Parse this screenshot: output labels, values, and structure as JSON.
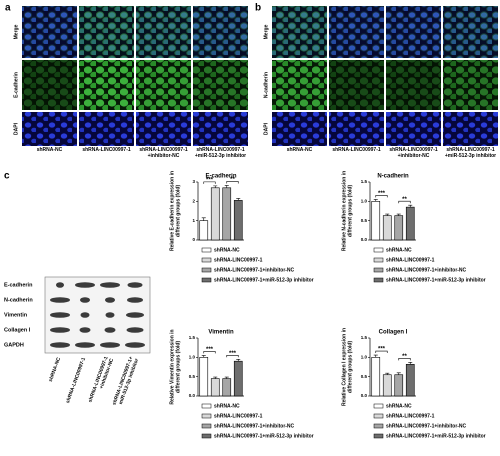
{
  "panels": {
    "a": {
      "label": "a",
      "rows": [
        "Merge",
        "E-cadherin",
        "DAPI"
      ],
      "columns": [
        "shRNA-NC",
        "shRNA-LINC00997-1",
        "shRNA-LINC00997-1\n+inhibitor-NC",
        "shRNA-LINC00997-1\n+miR-512-3p inhibitor"
      ]
    },
    "b": {
      "label": "b",
      "rows": [
        "Merge",
        "N-cadherin",
        "DAPI"
      ],
      "columns": [
        "shRNA-NC",
        "shRNA-LINC00997-1",
        "shRNA-LINC00997-1\n+inhibitor-NC",
        "shRNA-LINC00997-1\n+miR-512-3p inhibitor"
      ]
    },
    "c": {
      "label": "c",
      "blot": {
        "proteins": [
          "E-cadherin",
          "N-cadherin",
          "Vimentin",
          "Collagen I",
          "GAPDH"
        ],
        "lanes": [
          "shRNA-NC",
          "shRNA-LINC00997-1",
          "shRNA-LINC00997-1\n+inhibitor-NC",
          "shRNA-LINC00997-1+\nmiR-512-3p inhibitor"
        ]
      }
    }
  },
  "chart_data": [
    {
      "type": "bar",
      "title": "E-cadherin",
      "ylabel": "Relative E-cadherin expression in different groups (fold)",
      "categories": [
        "shRNA-NC",
        "shRNA-LINC00997-1",
        "shRNA-LINC00997-1+inhibitor-NC",
        "shRNA-LINC00997-1+miR-512-3p inhibitor"
      ],
      "colors": [
        "#ffffff",
        "#d9d9d9",
        "#a6a6a6",
        "#6e6e6e"
      ],
      "values": [
        1.0,
        2.7,
        2.7,
        2.05
      ],
      "errors": [
        0.15,
        0.1,
        0.12,
        0.1
      ],
      "ylim": [
        0,
        3
      ],
      "yticks": [
        0,
        1,
        2,
        3
      ],
      "annotations": [
        {
          "text": "***",
          "between": [
            0,
            1
          ]
        },
        {
          "text": "**",
          "between": [
            2,
            3
          ]
        }
      ]
    },
    {
      "type": "bar",
      "title": "N-cadherin",
      "ylabel": "Relative N-cadherin expression in different groups (fold)",
      "categories": [
        "shRNA-NC",
        "shRNA-LINC00997-1",
        "shRNA-LINC00997-1+inhibitor-NC",
        "shRNA-LINC00997-1+miR-512-3p inhibitor"
      ],
      "colors": [
        "#ffffff",
        "#d9d9d9",
        "#a6a6a6",
        "#6e6e6e"
      ],
      "values": [
        1.0,
        0.63,
        0.63,
        0.85
      ],
      "errors": [
        0.05,
        0.04,
        0.04,
        0.05
      ],
      "ylim": [
        0,
        1.5
      ],
      "yticks": [
        {
          "value": 0,
          "label": "0.0"
        },
        0.5,
        {
          "value": 1,
          "label": "1.0"
        },
        1.5
      ],
      "annotations": [
        {
          "text": "***",
          "between": [
            0,
            1
          ]
        },
        {
          "text": "**",
          "between": [
            2,
            3
          ]
        }
      ]
    },
    {
      "type": "bar",
      "title": "Vimentin",
      "ylabel": "Relative Vimentin expression in different groups (fold)",
      "categories": [
        "shRNA-NC",
        "shRNA-LINC00997-1",
        "shRNA-LINC00997-1+inhibitor-NC",
        "shRNA-LINC00997-1+miR-512-3p inhibitor"
      ],
      "colors": [
        "#ffffff",
        "#d9d9d9",
        "#a6a6a6",
        "#6e6e6e"
      ],
      "values": [
        1.0,
        0.45,
        0.45,
        0.9
      ],
      "errors": [
        0.05,
        0.04,
        0.04,
        0.05
      ],
      "ylim": [
        0,
        1.5
      ],
      "yticks": [
        {
          "value": 0,
          "label": "0.0"
        },
        0.5,
        {
          "value": 1,
          "label": "1.0"
        },
        1.5
      ],
      "annotations": [
        {
          "text": "***",
          "between": [
            0,
            1
          ]
        },
        {
          "text": "***",
          "between": [
            2,
            3
          ]
        }
      ]
    },
    {
      "type": "bar",
      "title": "Collagen I",
      "ylabel": "Relative Collagen I expression in different groups (fold)",
      "categories": [
        "shRNA-NC",
        "shRNA-LINC00997-1",
        "shRNA-LINC00997-1+inhibitor-NC",
        "shRNA-LINC00997-1+miR-512-3p inhibitor"
      ],
      "colors": [
        "#ffffff",
        "#d9d9d9",
        "#a6a6a6",
        "#6e6e6e"
      ],
      "values": [
        1.0,
        0.55,
        0.55,
        0.82
      ],
      "errors": [
        0.06,
        0.04,
        0.05,
        0.05
      ],
      "ylim": [
        0,
        1.5
      ],
      "yticks": [
        {
          "value": 0,
          "label": "0.0"
        },
        0.5,
        {
          "value": 1,
          "label": "1.0"
        },
        1.5
      ],
      "annotations": [
        {
          "text": "***",
          "between": [
            0,
            1
          ]
        },
        {
          "text": "**",
          "between": [
            2,
            3
          ]
        }
      ]
    }
  ]
}
